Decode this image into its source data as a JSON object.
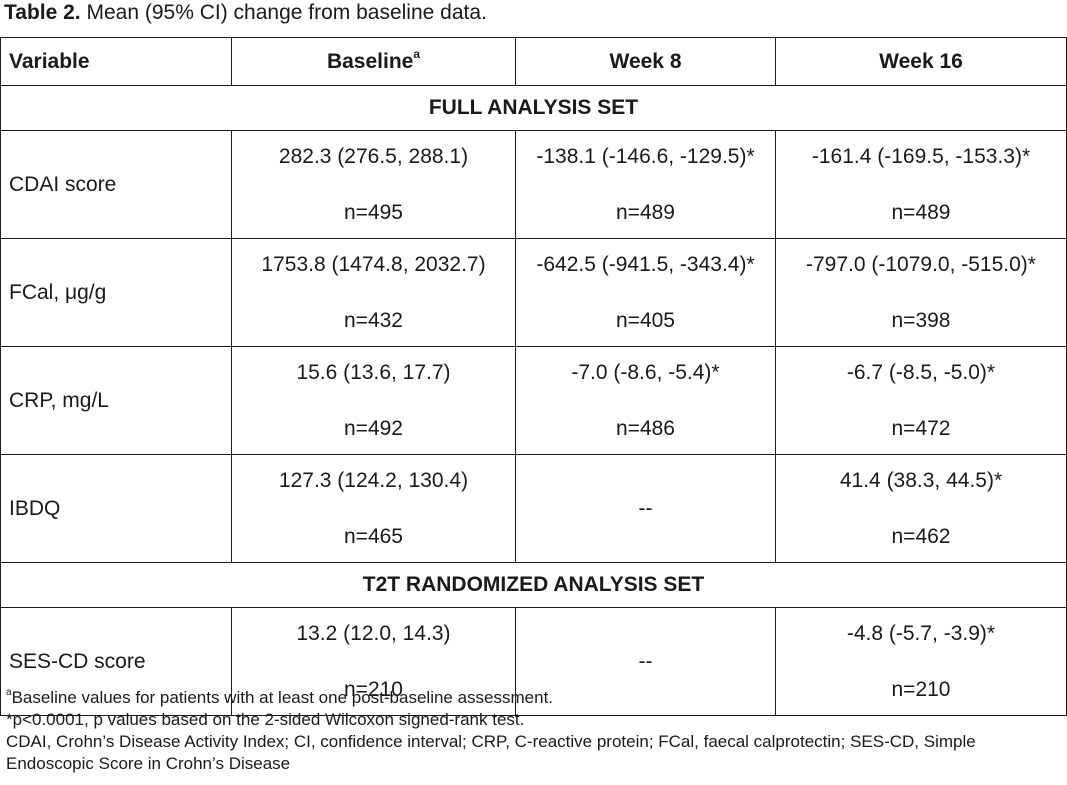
{
  "caption": {
    "label": "Table 2.",
    "text": "Mean (95% CI) change from baseline data."
  },
  "headers": {
    "variable": "Variable",
    "baseline": "Baseline",
    "baseline_sup": "a",
    "week8": "Week 8",
    "week16": "Week 16"
  },
  "sections": {
    "full": "FULL ANALYSIS SET",
    "t2t": "T2T RANDOMIZED ANALYSIS SET"
  },
  "rows": [
    {
      "variable": "CDAI score",
      "baseline": "282.3 (276.5, 288.1)",
      "baseline_n": "n=495",
      "week8": "-138.1 (-146.6, -129.5)*",
      "week8_n": "n=489",
      "week16": "-161.4 (-169.5, -153.3)*",
      "week16_n": "n=489"
    },
    {
      "variable": "FCal, μg/g",
      "baseline": "1753.8 (1474.8, 2032.7)",
      "baseline_n": "n=432",
      "week8": "-642.5 (-941.5, -343.4)*",
      "week8_n": "n=405",
      "week16": "-797.0 (-1079.0, -515.0)*",
      "week16_n": "n=398"
    },
    {
      "variable": "CRP, mg/L",
      "baseline": "15.6 (13.6, 17.7)",
      "baseline_n": "n=492",
      "week8": "-7.0 (-8.6, -5.4)*",
      "week8_n": "n=486",
      "week16": "-6.7 (-8.5, -5.0)*",
      "week16_n": "n=472"
    },
    {
      "variable": "IBDQ",
      "baseline": "127.3 (124.2, 130.4)",
      "baseline_n": "n=465",
      "week8": "--",
      "week16": "41.4 (38.3, 44.5)*",
      "week16_n": "n=462"
    },
    {
      "variable": "SES-CD score",
      "baseline": "13.2 (12.0, 14.3)",
      "baseline_n": "n=210",
      "week8": "--",
      "week16": "-4.8 (-5.7, -3.9)*",
      "week16_n": "n=210"
    }
  ],
  "footnotes": {
    "a_sup": "a",
    "a": "Baseline values for patients with at least one post-baseline assessment.",
    "star": "*p<0.0001, p values based on the 2-sided Wilcoxon signed-rank test.",
    "abbrev": "CDAI, Crohn’s Disease Activity Index; CI, confidence interval; CRP, C-reactive protein; FCal, faecal calprotectin; SES-CD, Simple Endoscopic Score in Crohn’s Disease"
  }
}
